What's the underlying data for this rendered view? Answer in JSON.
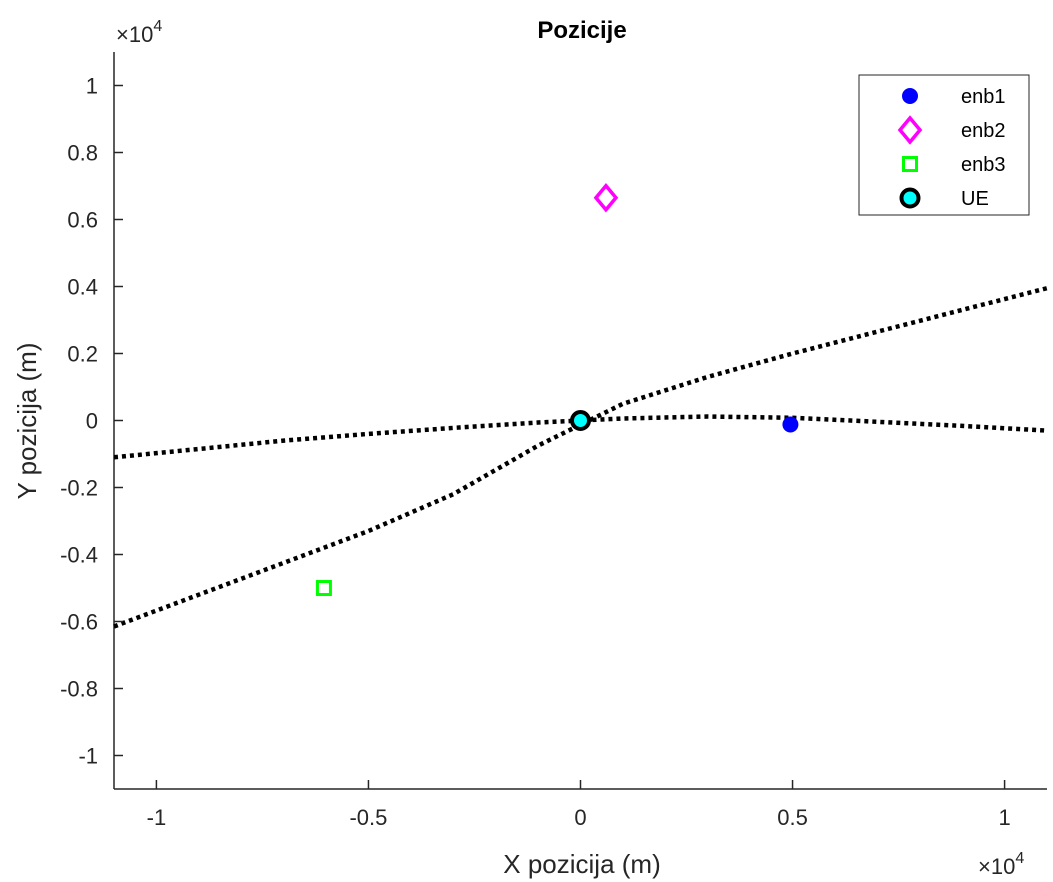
{
  "chart_data": {
    "type": "scatter",
    "title": "Pozicije",
    "xlabel": "X pozicija (m)",
    "ylabel": "Y pozicija (m)",
    "x_exponent_label": "×10",
    "y_exponent_label": "×10",
    "exponent": "4",
    "xlim": [
      -1.1,
      1.1
    ],
    "ylim": [
      -1.1,
      1.1
    ],
    "x_ticks": [
      -1,
      -0.5,
      0,
      0.5,
      1
    ],
    "x_tick_labels": [
      "-1",
      "-0.5",
      "0",
      "0.5",
      "1"
    ],
    "y_ticks": [
      1,
      0.8,
      0.6,
      0.4,
      0.2,
      0,
      -0.2,
      -0.4,
      -0.6,
      -0.8,
      -1
    ],
    "y_tick_labels": [
      "1",
      "0.8",
      "0.6",
      "0.4",
      "0.2",
      "0",
      "-0.2",
      "-0.4",
      "-0.6",
      "-0.8",
      "-1"
    ],
    "grid": false,
    "legend_position": "top-right",
    "series": [
      {
        "name": "enb1",
        "marker": "circle-filled",
        "color": "#0000ff",
        "x": 0.495,
        "y": -0.012
      },
      {
        "name": "enb2",
        "marker": "diamond",
        "color": "#ff00ff",
        "x": 0.06,
        "y": 0.665
      },
      {
        "name": "enb3",
        "marker": "square",
        "color": "#00ff00",
        "x": -0.605,
        "y": -0.5
      },
      {
        "name": "UE",
        "marker": "circle-outlined",
        "color": "#00ffff",
        "edge_color": "#000000",
        "x": 0.0,
        "y": 0.0
      }
    ],
    "curves": [
      {
        "style": "dotted",
        "color": "#000000",
        "x": [
          -1.1,
          -0.9,
          -0.7,
          -0.5,
          -0.3,
          -0.1,
          0.1,
          0.3,
          0.5,
          0.7,
          0.9,
          1.1
        ],
        "y": [
          -0.615,
          -0.52,
          -0.425,
          -0.33,
          -0.22,
          -0.075,
          0.05,
          0.13,
          0.2,
          0.265,
          0.33,
          0.395
        ]
      },
      {
        "style": "dotted",
        "color": "#000000",
        "x": [
          -1.1,
          -0.9,
          -0.7,
          -0.5,
          -0.3,
          -0.1,
          0.1,
          0.3,
          0.5,
          0.7,
          0.9,
          1.1
        ],
        "y": [
          -0.11,
          -0.085,
          -0.06,
          -0.04,
          -0.022,
          -0.006,
          0.006,
          0.012,
          0.008,
          -0.004,
          -0.016,
          -0.03
        ]
      }
    ]
  }
}
